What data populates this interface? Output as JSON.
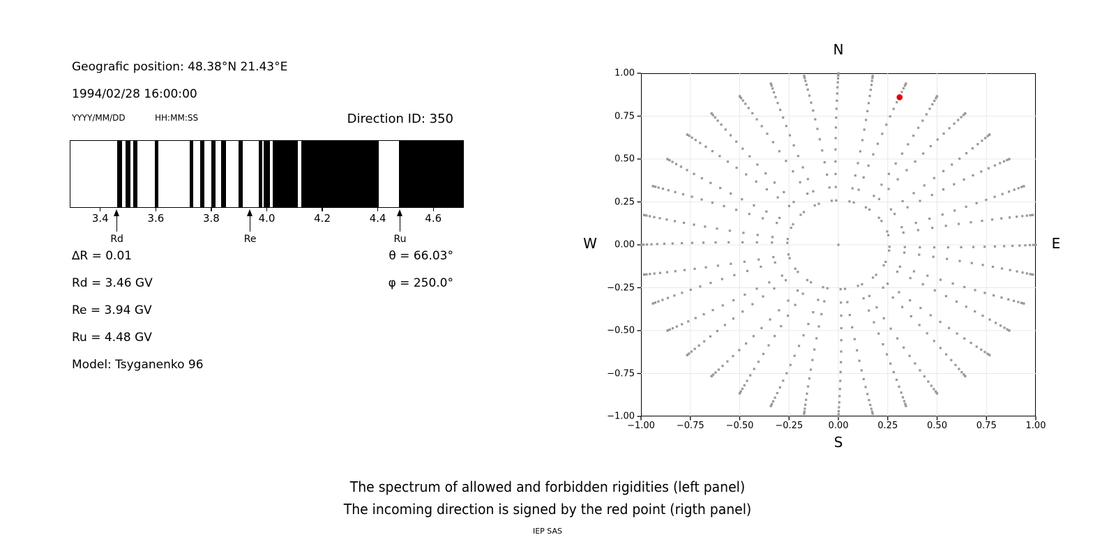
{
  "header": {
    "position": "Geografic position: 48.38°N 21.43°E",
    "datetime": "1994/02/28 16:00:00",
    "date_format_label": "YYYY/MM/DD",
    "time_format_label": "HH:MM:SS"
  },
  "left_panel": {
    "title": "Direction ID: 350",
    "params": {
      "delta": "∆R = 0.01",
      "rd": "Rd = 3.46 GV",
      "re": "Re = 3.94 GV",
      "ru": "Ru = 4.48 GV",
      "model": "Model: Tsyganenko 96",
      "theta": "θ = 66.03°",
      "phi": "φ = 250.0°"
    }
  },
  "right_panel": {
    "compass": {
      "top": "N",
      "bottom": "S",
      "left": "W",
      "right": "E"
    }
  },
  "caption": {
    "line1": "The spectrum of allowed and forbidden rigidities (left panel)",
    "line2": "The incoming direction is signed by the red point (rigth panel)",
    "credit": "IEP SAS"
  },
  "chart_data": [
    {
      "type": "bar",
      "panel": "left",
      "title": "Direction ID: 350",
      "description": "Barcode spectrum of allowed (black) and forbidden (white) rigidities in GV",
      "xlim": [
        3.29,
        4.71
      ],
      "xticks": [
        3.4,
        3.6,
        3.8,
        4.0,
        4.2,
        4.4,
        4.6
      ],
      "unit": "GV",
      "bar_color": "#000000",
      "allowed_bands_gv": [
        [
          3.458,
          3.476
        ],
        [
          3.488,
          3.506
        ],
        [
          3.516,
          3.531
        ],
        [
          3.594,
          3.609
        ],
        [
          3.722,
          3.735
        ],
        [
          3.76,
          3.775
        ],
        [
          3.8,
          3.815
        ],
        [
          3.835,
          3.853
        ],
        [
          3.898,
          3.913
        ],
        [
          3.971,
          3.984
        ],
        [
          3.989,
          4.011
        ],
        [
          4.021,
          4.112
        ],
        [
          4.125,
          4.404
        ],
        [
          4.479,
          4.71
        ]
      ],
      "markers": [
        {
          "label": "Rd",
          "value": 3.46
        },
        {
          "label": "Re",
          "value": 3.94
        },
        {
          "label": "Ru",
          "value": 4.48
        }
      ]
    },
    {
      "type": "scatter",
      "panel": "right",
      "description": "Direction grid (gray dots, r = sin(zenith), azimuth spokes every 10°); red point marks the incoming direction",
      "xlim": [
        -1,
        1
      ],
      "ylim": [
        -1,
        1
      ],
      "xticks": [
        -1.0,
        -0.75,
        -0.5,
        -0.25,
        0.0,
        0.25,
        0.5,
        0.75,
        1.0
      ],
      "yticks": [
        -1.0,
        -0.75,
        -0.5,
        -0.25,
        0.0,
        0.25,
        0.5,
        0.75,
        1.0
      ],
      "grid": true,
      "grid_color": "#e8e8e8",
      "dot_color": "#999999",
      "spokes": {
        "azimuth_start_deg": 0,
        "azimuth_step_deg": 10,
        "count": 36,
        "radii": [
          0.259,
          0.337,
          0.413,
          0.486,
          0.556,
          0.622,
          0.684,
          0.741,
          0.793,
          0.84,
          0.882,
          0.918,
          0.947,
          0.97,
          0.987,
          0.997,
          1.0
        ],
        "pair_pinch_deg": 2.5,
        "center_dot": true
      },
      "red_point": {
        "x": 0.31,
        "y": 0.86,
        "color": "#e8000b"
      },
      "compass_labels": [
        "N",
        "E",
        "S",
        "W"
      ]
    }
  ]
}
